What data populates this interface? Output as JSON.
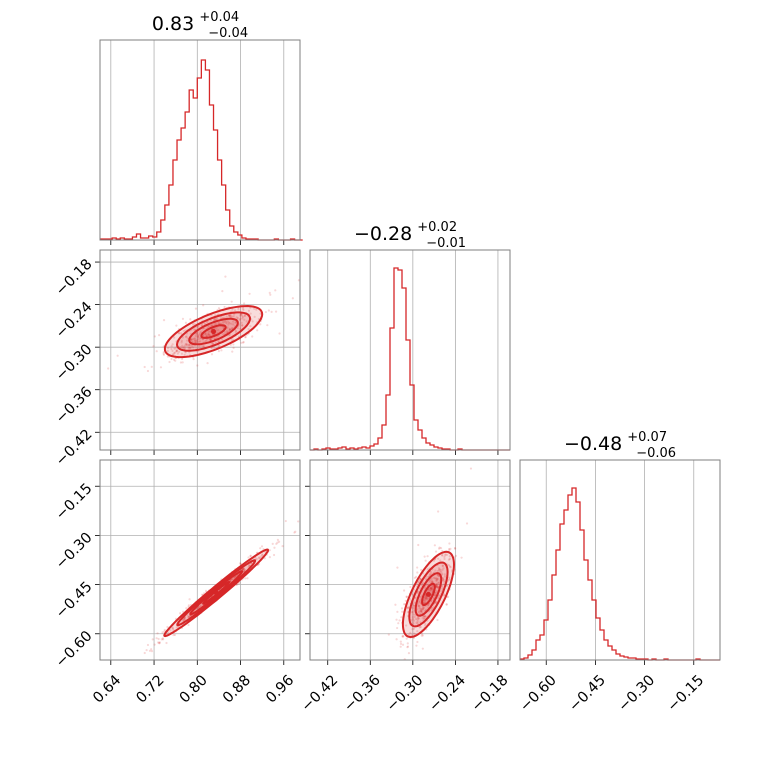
{
  "figure": {
    "color": "#d62728"
  },
  "chart_data": [
    {
      "type": "histogram",
      "panel": "diag-0",
      "title": {
        "value": "0.83",
        "plus": "+0.04",
        "minus": "−0.04"
      },
      "xlim": [
        0.62,
        0.99
      ],
      "ylim": [
        0,
        200
      ],
      "bin_start": 0.62,
      "bin_width": 0.0075,
      "counts": [
        1,
        1,
        1,
        2,
        1,
        2,
        1,
        1,
        3,
        6,
        2,
        2,
        4,
        3,
        8,
        20,
        35,
        55,
        80,
        100,
        112,
        128,
        150,
        142,
        162,
        180,
        170,
        135,
        110,
        80,
        55,
        30,
        14,
        8,
        5,
        2,
        1,
        1,
        1,
        0,
        0,
        0,
        0,
        1,
        0,
        0,
        0,
        1,
        0,
        0
      ]
    },
    {
      "type": "histogram",
      "panel": "diag-1",
      "title": {
        "value": "−0.28",
        "plus": "+0.02",
        "minus": "−0.01"
      },
      "xlim": [
        -0.445,
        -0.163
      ],
      "ylim": [
        0,
        200
      ],
      "bin_start": -0.445,
      "bin_width": 0.00564,
      "counts": [
        0,
        1,
        0,
        1,
        2,
        1,
        1,
        2,
        3,
        1,
        2,
        1,
        2,
        3,
        2,
        4,
        6,
        12,
        25,
        55,
        122,
        182,
        180,
        162,
        110,
        65,
        30,
        20,
        12,
        7,
        5,
        3,
        2,
        1,
        1,
        0,
        0,
        1,
        0,
        0,
        0,
        0,
        0,
        0,
        0,
        0,
        0,
        0,
        0,
        0
      ]
    },
    {
      "type": "histogram",
      "panel": "diag-2",
      "title": {
        "value": "−0.48",
        "plus": "+0.07",
        "minus": "−0.06"
      },
      "xlim": [
        -0.68,
        -0.07
      ],
      "ylim": [
        0,
        200
      ],
      "bin_start": -0.68,
      "bin_width": 0.0122,
      "counts": [
        1,
        2,
        5,
        10,
        20,
        25,
        40,
        60,
        85,
        110,
        136,
        150,
        165,
        172,
        158,
        130,
        100,
        80,
        60,
        42,
        30,
        20,
        14,
        10,
        6,
        4,
        3,
        2,
        2,
        1,
        1,
        1,
        0,
        1,
        0,
        0,
        1,
        0,
        0,
        0,
        0,
        0,
        0,
        0,
        1,
        0,
        0,
        0,
        0,
        0
      ]
    },
    {
      "type": "scatter+contour",
      "panel": "cov-1-0",
      "xlim": [
        0.62,
        0.99
      ],
      "ylim": [
        -0.445,
        -0.163
      ],
      "center": [
        0.83,
        -0.278
      ],
      "sd": [
        0.045,
        0.018
      ],
      "corr": 0.68,
      "n_points": 520,
      "contour_levels_sigma": [
        0.5,
        1.0,
        1.5,
        2.0
      ]
    },
    {
      "type": "scatter+contour",
      "panel": "cov-2-0",
      "xlim": [
        0.62,
        0.99
      ],
      "ylim": [
        -0.68,
        -0.07
      ],
      "center": [
        0.835,
        -0.475
      ],
      "sd": [
        0.048,
        0.066
      ],
      "corr": 0.985,
      "n_points": 520,
      "contour_levels_sigma": [
        0.5,
        1.0,
        1.5,
        2.0
      ]
    },
    {
      "type": "scatter+contour",
      "panel": "cov-2-1",
      "xlim": [
        -0.445,
        -0.163
      ],
      "ylim": [
        -0.68,
        -0.07
      ],
      "center": [
        -0.278,
        -0.48
      ],
      "sd": [
        0.018,
        0.065
      ],
      "corr": 0.7,
      "n_points": 520,
      "contour_levels_sigma": [
        0.5,
        1.0,
        1.5,
        2.0
      ]
    }
  ],
  "axes": {
    "p0_ticks": [
      "0.64",
      "0.72",
      "0.80",
      "0.88",
      "0.96"
    ],
    "p1_ticks": [
      "−0.42",
      "−0.36",
      "−0.30",
      "−0.24",
      "−0.18"
    ],
    "p2_ticks": [
      "−0.60",
      "−0.45",
      "−0.30",
      "−0.15"
    ]
  }
}
